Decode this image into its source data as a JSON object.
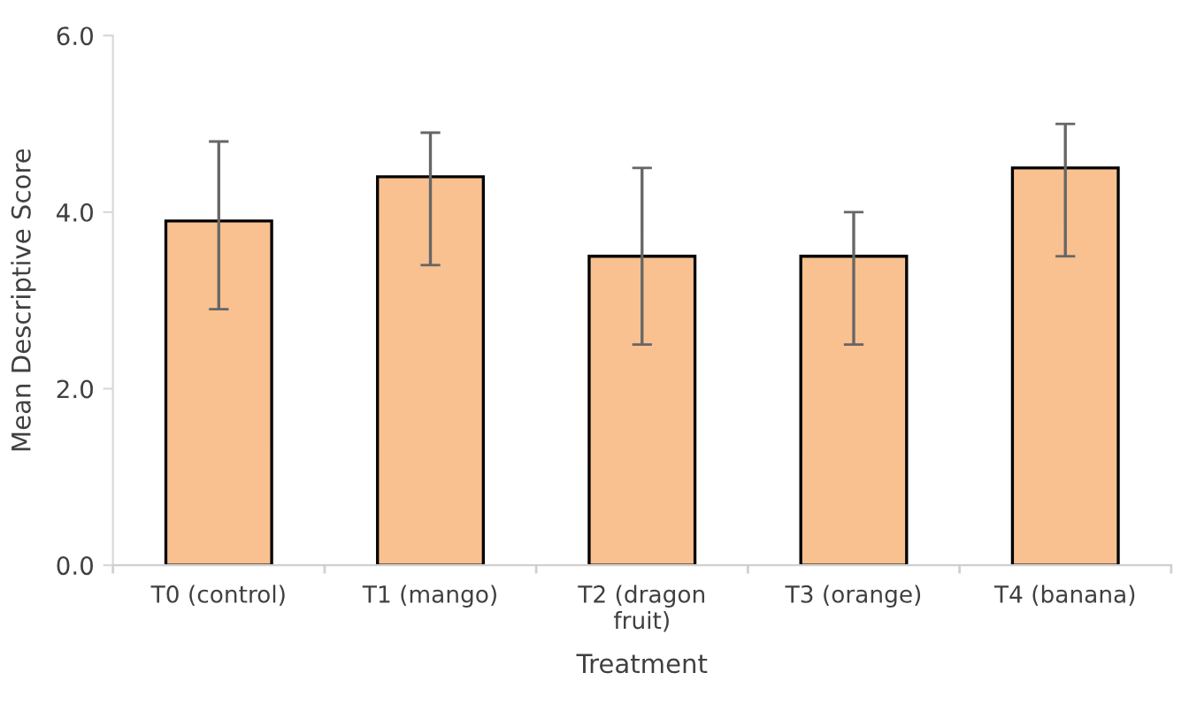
{
  "chart_data": {
    "type": "bar",
    "xlabel": "Treatment",
    "ylabel": "Mean Descriptive Score",
    "categories": [
      "T0 (control)",
      "T1 (mango)",
      "T2 (dragon\nfruit)",
      "T3 (orange)",
      "T4 (banana)"
    ],
    "values": [
      3.9,
      4.4,
      3.5,
      3.5,
      4.5
    ],
    "errors": [
      [
        2.9,
        4.8
      ],
      [
        3.4,
        4.9
      ],
      [
        2.5,
        4.5
      ],
      [
        2.5,
        4.0
      ],
      [
        3.5,
        5.0
      ]
    ],
    "color": "#f9c090",
    "ylim": [
      0,
      6
    ],
    "yticks": [
      {
        "value": 0,
        "label": "0.0"
      },
      {
        "value": 2,
        "label": "2.0"
      },
      {
        "value": 4,
        "label": "4.0"
      },
      {
        "value": 6,
        "label": "6.0"
      }
    ],
    "grid": false
  }
}
